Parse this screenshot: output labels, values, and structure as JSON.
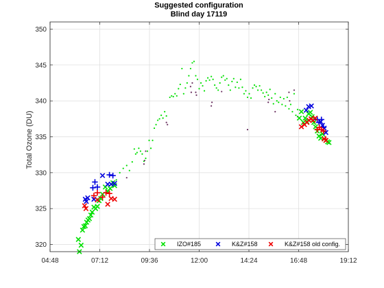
{
  "chart_data": {
    "type": "scatter",
    "title": "Suggested configuration",
    "subtitle": "Blind day 17119",
    "xlabel": "",
    "ylabel": "Total Ozone (DU)",
    "xlim": [
      "04:48",
      "19:12"
    ],
    "ylim": [
      319,
      351
    ],
    "xticks": [
      "04:48",
      "07:12",
      "09:36",
      "12:00",
      "14:24",
      "16:48",
      "19:12"
    ],
    "yticks": [
      320,
      325,
      330,
      335,
      340,
      345,
      350
    ],
    "grid": true,
    "legend_position": "bottom-right",
    "legend": [
      "IZO#185",
      "K&Z#158",
      "K&Z#158 old config."
    ],
    "colors": {
      "IZO#185": "#00e000",
      "K&Z#158": "#0000dd",
      "K&Z#158 old config.": "#ee0000",
      "dots_dark": "#6a3060"
    },
    "series": [
      {
        "name": "IZO#185",
        "marker": "x",
        "points": [
          [
            "06:10",
            320.7
          ],
          [
            "06:13",
            319.0
          ],
          [
            "06:18",
            319.9
          ],
          [
            "06:22",
            322.0
          ],
          [
            "06:26",
            322.5
          ],
          [
            "06:30",
            322.6
          ],
          [
            "06:34",
            323.1
          ],
          [
            "06:38",
            323.4
          ],
          [
            "06:42",
            323.6
          ],
          [
            "06:46",
            324.1
          ],
          [
            "06:50",
            324.5
          ],
          [
            "06:55",
            325.2
          ],
          [
            "07:00",
            325.0
          ],
          [
            "07:05",
            325.3
          ],
          [
            "07:10",
            326.1
          ],
          [
            "07:15",
            326.4
          ],
          [
            "07:20",
            327.0
          ],
          [
            "07:28",
            328.0
          ],
          [
            "07:35",
            327.4
          ],
          [
            "07:42",
            327.8
          ],
          [
            "07:50",
            328.6
          ],
          [
            "07:55",
            328.2
          ]
        ]
      },
      {
        "name": "K&Z#158",
        "marker": "x",
        "points": [
          [
            "06:30",
            326.3
          ],
          [
            "06:33",
            326.0
          ],
          [
            "06:37",
            326.5
          ],
          [
            "06:55",
            326.3
          ],
          [
            "07:20",
            329.6
          ],
          [
            "07:35",
            328.4
          ],
          [
            "07:45",
            328.4
          ],
          [
            "07:55",
            328.5
          ]
        ]
      },
      {
        "name": "K&Z#158",
        "marker": "+",
        "points": [
          [
            "06:52",
            327.9
          ],
          [
            "06:58",
            328.7
          ],
          [
            "07:05",
            328.0
          ],
          [
            "07:40",
            329.7
          ],
          [
            "07:50",
            329.6
          ]
        ]
      },
      {
        "name": "K&Z#158 old config.",
        "marker": "x",
        "points": [
          [
            "06:28",
            325.4
          ],
          [
            "06:32",
            325.0
          ],
          [
            "07:05",
            326.2
          ],
          [
            "07:35",
            325.6
          ],
          [
            "07:45",
            326.4
          ],
          [
            "07:55",
            326.3
          ]
        ]
      },
      {
        "name": "K&Z#158 old config.",
        "marker": "+",
        "points": [
          [
            "06:55",
            326.8
          ],
          [
            "07:05",
            327.2
          ],
          [
            "07:20",
            326.6
          ],
          [
            "07:30",
            327.2
          ],
          [
            "07:40",
            327.1
          ]
        ]
      },
      {
        "name": "IZO#185",
        "marker": "x",
        "points": [
          [
            "16:50",
            337.6
          ],
          [
            "16:56",
            338.5
          ],
          [
            "17:02",
            337.0
          ],
          [
            "17:07",
            337.6
          ],
          [
            "17:12",
            337.1
          ],
          [
            "17:17",
            338.2
          ],
          [
            "17:22",
            338.4
          ],
          [
            "17:27",
            337.8
          ],
          [
            "17:32",
            337.0
          ],
          [
            "17:37",
            336.4
          ],
          [
            "17:42",
            335.8
          ],
          [
            "17:47",
            335.1
          ],
          [
            "17:52",
            334.8
          ],
          [
            "17:57",
            335.4
          ],
          [
            "18:02",
            334.7
          ],
          [
            "18:07",
            334.5
          ],
          [
            "18:12",
            334.3
          ],
          [
            "18:16",
            334.2
          ]
        ]
      },
      {
        "name": "K&Z#158",
        "marker": "x",
        "points": [
          [
            "17:10",
            338.7
          ],
          [
            "17:17",
            339.2
          ],
          [
            "17:25",
            339.3
          ],
          [
            "17:52",
            337.1
          ],
          [
            "17:57",
            336.6
          ],
          [
            "18:02",
            336.2
          ],
          [
            "18:07",
            335.6
          ]
        ]
      },
      {
        "name": "K&Z#158",
        "marker": "+",
        "points": [
          [
            "17:42",
            337.4
          ],
          [
            "17:47",
            337.0
          ],
          [
            "17:54",
            337.4
          ],
          [
            "18:00",
            336.3
          ]
        ]
      },
      {
        "name": "K&Z#158 old config.",
        "marker": "x",
        "points": [
          [
            "16:56",
            336.4
          ],
          [
            "17:05",
            336.7
          ],
          [
            "17:12",
            337.0
          ],
          [
            "17:18",
            337.3
          ],
          [
            "17:24",
            337.5
          ],
          [
            "17:30",
            337.3
          ],
          [
            "17:36",
            337.6
          ],
          [
            "18:02",
            334.7
          ],
          [
            "18:07",
            334.5
          ]
        ]
      },
      {
        "name": "K&Z#158 old config.",
        "marker": "+",
        "points": [
          [
            "17:42",
            336.0
          ],
          [
            "17:48",
            336.3
          ],
          [
            "17:54",
            336.0
          ],
          [
            "18:00",
            335.8
          ],
          [
            "18:05",
            334.7
          ]
        ]
      }
    ],
    "dots": [
      {
        "color": "#00e000",
        "points": [
          [
            "08:00",
            329.0
          ],
          [
            "08:10",
            330.0
          ],
          [
            "08:20",
            330.6
          ],
          [
            "08:30",
            331.0
          ],
          [
            "08:38",
            330.3
          ],
          [
            "08:46",
            331.5
          ],
          [
            "08:52",
            333.3
          ],
          [
            "08:56",
            332.6
          ],
          [
            "09:00",
            332.8
          ],
          [
            "09:05",
            333.4
          ],
          [
            "09:10",
            333.0
          ],
          [
            "09:15",
            332.6
          ],
          [
            "09:20",
            331.6
          ],
          [
            "09:25",
            332.0
          ],
          [
            "09:30",
            333.0
          ],
          [
            "09:35",
            334.5
          ],
          [
            "09:40",
            333.4
          ],
          [
            "09:45",
            334.5
          ],
          [
            "09:50",
            336.2
          ],
          [
            "09:55",
            336.7
          ],
          [
            "10:00",
            337.3
          ],
          [
            "10:05",
            337.5
          ],
          [
            "10:10",
            338.0
          ],
          [
            "10:15",
            337.6
          ],
          [
            "10:20",
            338.5
          ],
          [
            "10:25",
            337.9
          ],
          [
            "10:35",
            340.5
          ],
          [
            "10:40",
            340.7
          ],
          [
            "10:45",
            340.6
          ],
          [
            "10:50",
            341.0
          ],
          [
            "10:55",
            340.7
          ],
          [
            "11:00",
            341.7
          ],
          [
            "11:05",
            342.3
          ],
          [
            "11:10",
            344.5
          ],
          [
            "11:15",
            341.0
          ],
          [
            "11:20",
            341.8
          ],
          [
            "11:25",
            342.5
          ],
          [
            "11:30",
            343.5
          ],
          [
            "11:35",
            344.5
          ],
          [
            "11:40",
            345.3
          ],
          [
            "11:45",
            345.5
          ],
          [
            "11:50",
            343.5
          ],
          [
            "11:55",
            343.0
          ],
          [
            "12:00",
            341.7
          ],
          [
            "12:05",
            342.5
          ],
          [
            "12:10",
            342.1
          ],
          [
            "12:15",
            341.4
          ],
          [
            "12:20",
            342.8
          ],
          [
            "12:25",
            343.2
          ],
          [
            "12:30",
            342.9
          ],
          [
            "12:35",
            343.4
          ],
          [
            "12:40",
            343.0
          ],
          [
            "12:45",
            342.2
          ],
          [
            "12:50",
            341.8
          ],
          [
            "12:55",
            341.5
          ],
          [
            "13:00",
            342.5
          ],
          [
            "13:05",
            343.3
          ],
          [
            "13:10",
            343.5
          ],
          [
            "13:15",
            342.9
          ],
          [
            "13:20",
            343.1
          ],
          [
            "13:25",
            342.2
          ],
          [
            "13:30",
            341.5
          ],
          [
            "13:35",
            342.7
          ],
          [
            "13:40",
            343.1
          ],
          [
            "13:45",
            341.9
          ],
          [
            "13:50",
            342.6
          ],
          [
            "13:55",
            341.8
          ],
          [
            "14:00",
            343.0
          ],
          [
            "14:05",
            341.9
          ],
          [
            "14:10",
            341.0
          ],
          [
            "14:15",
            341.4
          ],
          [
            "14:20",
            340.5
          ],
          [
            "14:25",
            341.0
          ],
          [
            "14:30",
            340.4
          ],
          [
            "14:35",
            341.8
          ],
          [
            "14:40",
            342.2
          ],
          [
            "14:45",
            342.0
          ],
          [
            "14:50",
            341.5
          ],
          [
            "14:55",
            342.1
          ],
          [
            "15:00",
            341.5
          ],
          [
            "15:05",
            341.1
          ],
          [
            "15:10",
            340.6
          ],
          [
            "15:15",
            341.2
          ],
          [
            "15:20",
            340.8
          ],
          [
            "15:25",
            341.6
          ],
          [
            "15:30",
            340.4
          ],
          [
            "15:35",
            339.6
          ],
          [
            "15:40",
            341.0
          ],
          [
            "15:45",
            340.0
          ],
          [
            "15:50",
            339.8
          ],
          [
            "15:55",
            340.5
          ],
          [
            "16:00",
            339.5
          ],
          [
            "16:05",
            340.3
          ],
          [
            "16:10",
            339.3
          ],
          [
            "16:15",
            340.5
          ],
          [
            "16:20",
            338.9
          ],
          [
            "16:25",
            339.5
          ],
          [
            "16:30",
            338.5
          ],
          [
            "16:35",
            341.0
          ],
          [
            "16:40",
            338.0
          ],
          [
            "16:45",
            338.8
          ]
        ]
      },
      {
        "color": "#6a3060",
        "points": [
          [
            "08:30",
            329.3
          ],
          [
            "09:20",
            331.2
          ],
          [
            "09:22",
            331.7
          ],
          [
            "09:25",
            333.0
          ],
          [
            "10:25",
            337.0
          ],
          [
            "10:28",
            336.7
          ],
          [
            "11:35",
            342.0
          ],
          [
            "11:37",
            341.2
          ],
          [
            "11:40",
            342.5
          ],
          [
            "11:50",
            341.2
          ],
          [
            "11:52",
            340.8
          ],
          [
            "12:35",
            339.3
          ],
          [
            "12:37",
            339.8
          ],
          [
            "13:05",
            341.3
          ],
          [
            "14:20",
            336.0
          ],
          [
            "15:20",
            339.8
          ],
          [
            "15:22",
            340.2
          ],
          [
            "15:40",
            338.5
          ],
          [
            "16:20",
            341.2
          ],
          [
            "16:22",
            340.0
          ],
          [
            "16:35",
            341.5
          ],
          [
            "16:45",
            337.8
          ]
        ]
      }
    ]
  }
}
